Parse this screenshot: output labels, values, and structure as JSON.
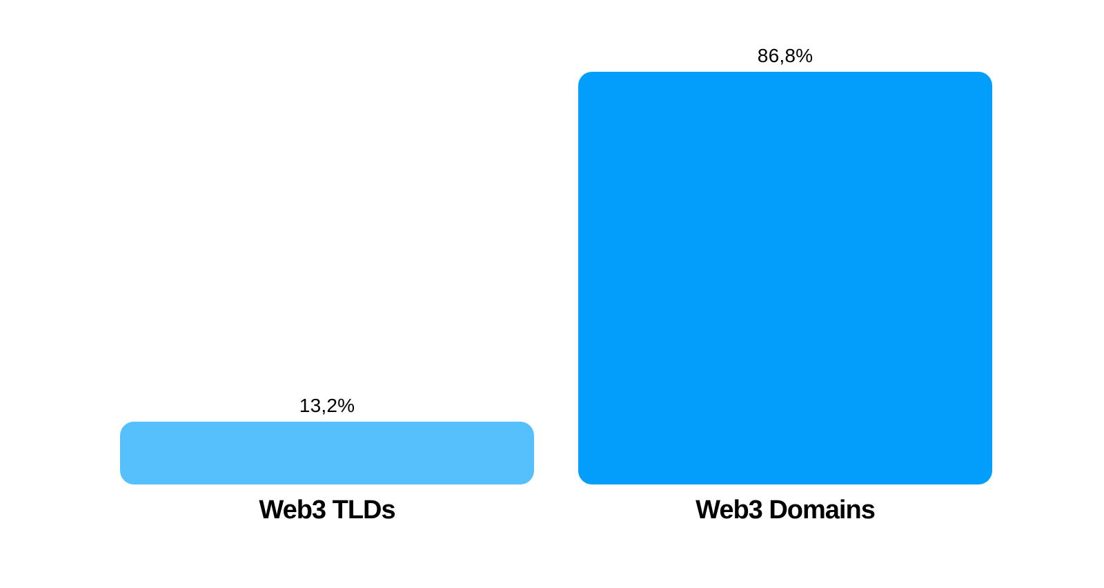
{
  "chart_data": {
    "type": "bar",
    "categories": [
      "Web3 TLDs",
      "Web3 Domains"
    ],
    "values": [
      13.2,
      86.8
    ],
    "value_labels": [
      "13,2%",
      "86,8%"
    ],
    "unit": "%",
    "decimal_separator": ",",
    "ylim": [
      0,
      100
    ],
    "grid": false,
    "legend": false,
    "axes_visible": false,
    "bar_colors": [
      "#55C0FB",
      "#019EFC"
    ],
    "background_color": "#FFFFFF",
    "label_color": "#000000"
  }
}
